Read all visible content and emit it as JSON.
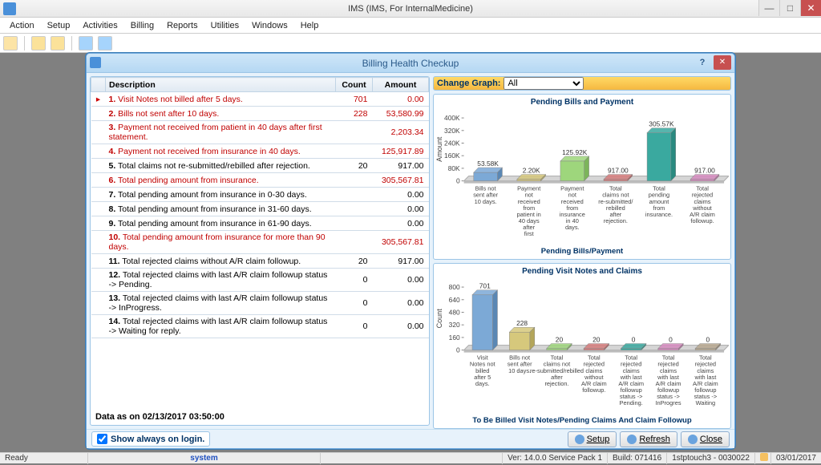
{
  "app": {
    "title": "IMS (IMS, For InternalMedicine)",
    "menus": [
      "Action",
      "Setup",
      "Activities",
      "Billing",
      "Reports",
      "Utilities",
      "Windows",
      "Help"
    ]
  },
  "dialog": {
    "title": "Billing Health Checkup",
    "help": "?",
    "close": "✕",
    "table": {
      "headers": {
        "desc": "Description",
        "count": "Count",
        "amount": "Amount"
      },
      "rows": [
        {
          "n": "1.",
          "desc": "Visit Notes not billed after 5 days.",
          "count": "701",
          "amount": "0.00",
          "red": true,
          "sel": true
        },
        {
          "n": "2.",
          "desc": "Bills not sent after 10 days.",
          "count": "228",
          "amount": "53,580.99",
          "red": true
        },
        {
          "n": "3.",
          "desc": "Payment not received from patient in 40 days after first statement.",
          "count": "",
          "amount": "2,203.34",
          "red": true
        },
        {
          "n": "4.",
          "desc": "Payment not received from insurance in 40 days.",
          "count": "",
          "amount": "125,917.89",
          "red": true
        },
        {
          "n": "5.",
          "desc": "Total claims not re-submitted/rebilled after rejection.",
          "count": "20",
          "amount": "917.00",
          "red": false
        },
        {
          "n": "6.",
          "desc": "Total pending amount from insurance.",
          "count": "",
          "amount": "305,567.81",
          "red": true
        },
        {
          "n": "7.",
          "desc": "Total pending amount from insurance in 0-30 days.",
          "count": "",
          "amount": "0.00",
          "red": false
        },
        {
          "n": "8.",
          "desc": "Total pending amount from insurance in 31-60 days.",
          "count": "",
          "amount": "0.00",
          "red": false
        },
        {
          "n": "9.",
          "desc": "Total pending amount from insurance in 61-90 days.",
          "count": "",
          "amount": "0.00",
          "red": false
        },
        {
          "n": "10.",
          "desc": "Total pending amount from insurance for more than 90 days.",
          "count": "",
          "amount": "305,567.81",
          "red": true
        },
        {
          "n": "11.",
          "desc": "Total rejected claims without A/R claim followup.",
          "count": "20",
          "amount": "917.00",
          "red": false
        },
        {
          "n": "12.",
          "desc": "Total rejected claims with last A/R claim followup status -> Pending.",
          "count": "0",
          "amount": "0.00",
          "red": false
        },
        {
          "n": "13.",
          "desc": "Total rejected claims with last A/R claim followup status -> InProgress.",
          "count": "0",
          "amount": "0.00",
          "red": false
        },
        {
          "n": "14.",
          "desc": "Total rejected claims with last A/R claim followup status -> Waiting for reply.",
          "count": "0",
          "amount": "0.00",
          "red": false
        }
      ]
    },
    "data_asof": "Data as on 02/13/2017 03:50:00",
    "always_label": "Show always on login.",
    "graph_label": "Change Graph:",
    "graph_value": "All",
    "buttons": {
      "setup": "Setup",
      "refresh": "Refresh",
      "close": "Close"
    }
  },
  "chart1": {
    "title": "Pending Bills and Payment",
    "footer": "Pending Bills/Payment",
    "ylabel": "Amount",
    "ymax": 400,
    "yticks": [
      0,
      80,
      160,
      240,
      320,
      400
    ],
    "ytick_labels": [
      "0",
      "80K",
      "160K",
      "240K",
      "320K",
      "400K"
    ],
    "bars": [
      {
        "label": "Bills not sent after 10 days.",
        "value": 53.58,
        "text": "53.58K",
        "color": "#7ca9d6",
        "colord": "#5a87b4"
      },
      {
        "label": "Payment not received from patient in 40 days after first statement.",
        "value": 2.2,
        "text": "2.20K",
        "color": "#d6c87c",
        "colord": "#b4a65a"
      },
      {
        "label": "Payment not received from insurance in 40 days.",
        "value": 125.92,
        "text": "125.92K",
        "color": "#9ed67c",
        "colord": "#7cb45a"
      },
      {
        "label": "Total claims not re-submitted/ rebilled after rejection.",
        "value": 0.92,
        "text": "917.00",
        "color": "#d67c7c",
        "colord": "#b45a5a"
      },
      {
        "label": "Total pending amount from insurance.",
        "value": 305.57,
        "text": "305.57K",
        "color": "#3aa99f",
        "colord": "#2a8a80"
      },
      {
        "label": "Total rejected claims without A/R claim followup.",
        "value": 0.92,
        "text": "917.00",
        "color": "#d68abf",
        "colord": "#b4689d"
      }
    ]
  },
  "chart2": {
    "title": "Pending Visit Notes and Claims",
    "footer": "To Be Billed Visit Notes/Pending Claims And Claim Followup",
    "ylabel": "Count",
    "ymax": 800,
    "yticks": [
      0,
      160,
      320,
      480,
      640,
      800
    ],
    "ytick_labels": [
      "0",
      "160",
      "320",
      "480",
      "640",
      "800"
    ],
    "bars": [
      {
        "label": "Visit Notes not billed after 5 days.",
        "value": 701,
        "text": "701",
        "color": "#7ca9d6",
        "colord": "#5a87b4"
      },
      {
        "label": "Bills not sent after 10 days.",
        "value": 228,
        "text": "228",
        "color": "#d6c87c",
        "colord": "#b4a65a"
      },
      {
        "label": "Total claims not re-submitted/rebilled after rejection.",
        "value": 20,
        "text": "20",
        "color": "#9ed67c",
        "colord": "#7cb45a"
      },
      {
        "label": "Total rejected claims without A/R claim followup.",
        "value": 20,
        "text": "20",
        "color": "#d67c7c",
        "colord": "#b45a5a"
      },
      {
        "label": "Total rejected claims with last A/R claim followup status -> Pending.",
        "value": 0,
        "text": "0",
        "color": "#3aa99f",
        "colord": "#2a8a80"
      },
      {
        "label": "Total rejected claims with last A/R claim followup status -> InProgres",
        "value": 0,
        "text": "0",
        "color": "#d68abf",
        "colord": "#b4689d"
      },
      {
        "label": "Total rejected claims with last A/R claim followup status -> Waiting",
        "value": 0,
        "text": "0",
        "color": "#b8a890",
        "colord": "#96866e"
      }
    ]
  },
  "status": {
    "ready": "Ready",
    "system": "system",
    "ver": "Ver: 14.0.0 Service Pack 1",
    "build": "Build: 071416",
    "touch": "1stptouch3 - 0030022",
    "date": "03/01/2017"
  }
}
